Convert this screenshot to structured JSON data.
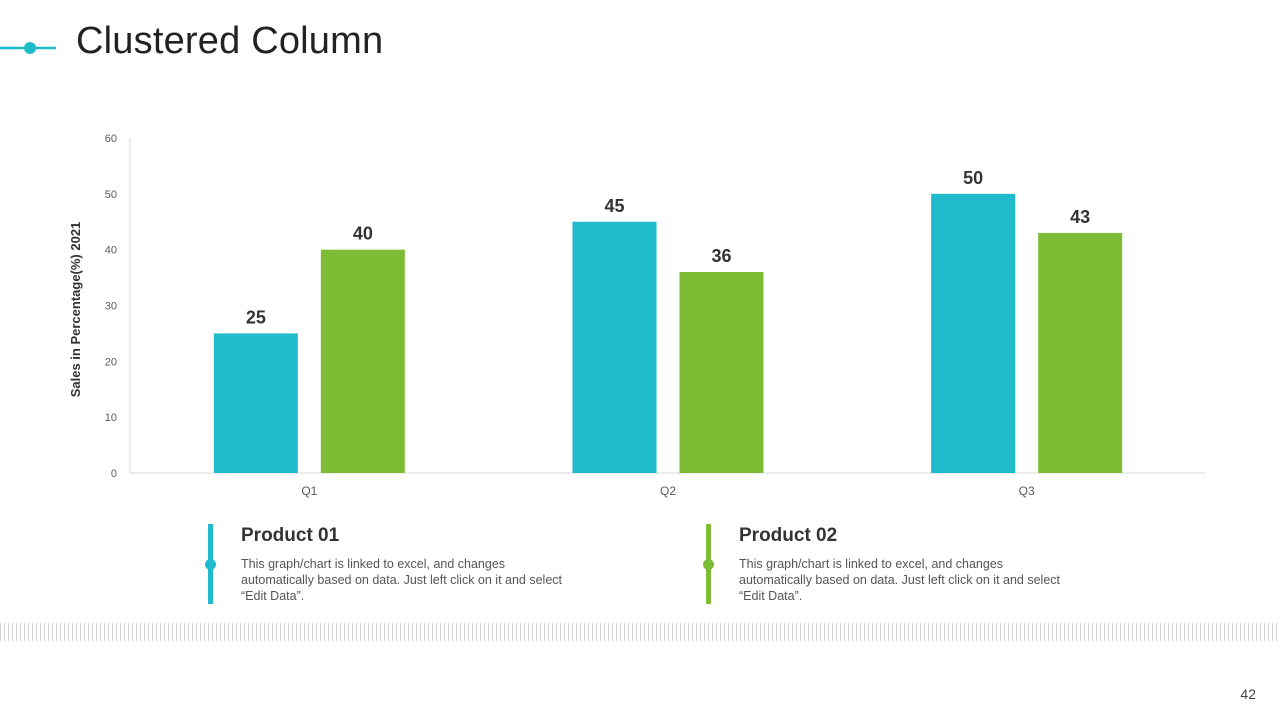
{
  "slide": {
    "title": "Clustered Column",
    "page_number": "42",
    "accent_color": "#1fbacc"
  },
  "legend": [
    {
      "name": "Product 01",
      "color": "#1fbacc",
      "description": "This graph/chart is linked to excel, and changes automatically based on data. Just left click on it and select “Edit Data”."
    },
    {
      "name": "Product 02",
      "color": "#7cbd35",
      "description": "This graph/chart is linked to excel, and changes automatically based on data. Just left click on it and select “Edit Data”."
    }
  ],
  "chart_data": {
    "type": "bar",
    "categories": [
      "Q1",
      "Q2",
      "Q3"
    ],
    "series": [
      {
        "name": "Product 01",
        "color": "#1fbacc",
        "values": [
          25,
          45,
          50
        ]
      },
      {
        "name": "Product 02",
        "color": "#7cbd35",
        "values": [
          40,
          36,
          43
        ]
      }
    ],
    "title": "",
    "xlabel": "",
    "ylabel": "Sales in Percentage(%) 2021",
    "ylim": [
      0,
      60
    ],
    "yticks": [
      0,
      10,
      20,
      30,
      40,
      50,
      60
    ],
    "grid": false,
    "data_labels": true,
    "legend": "none"
  }
}
